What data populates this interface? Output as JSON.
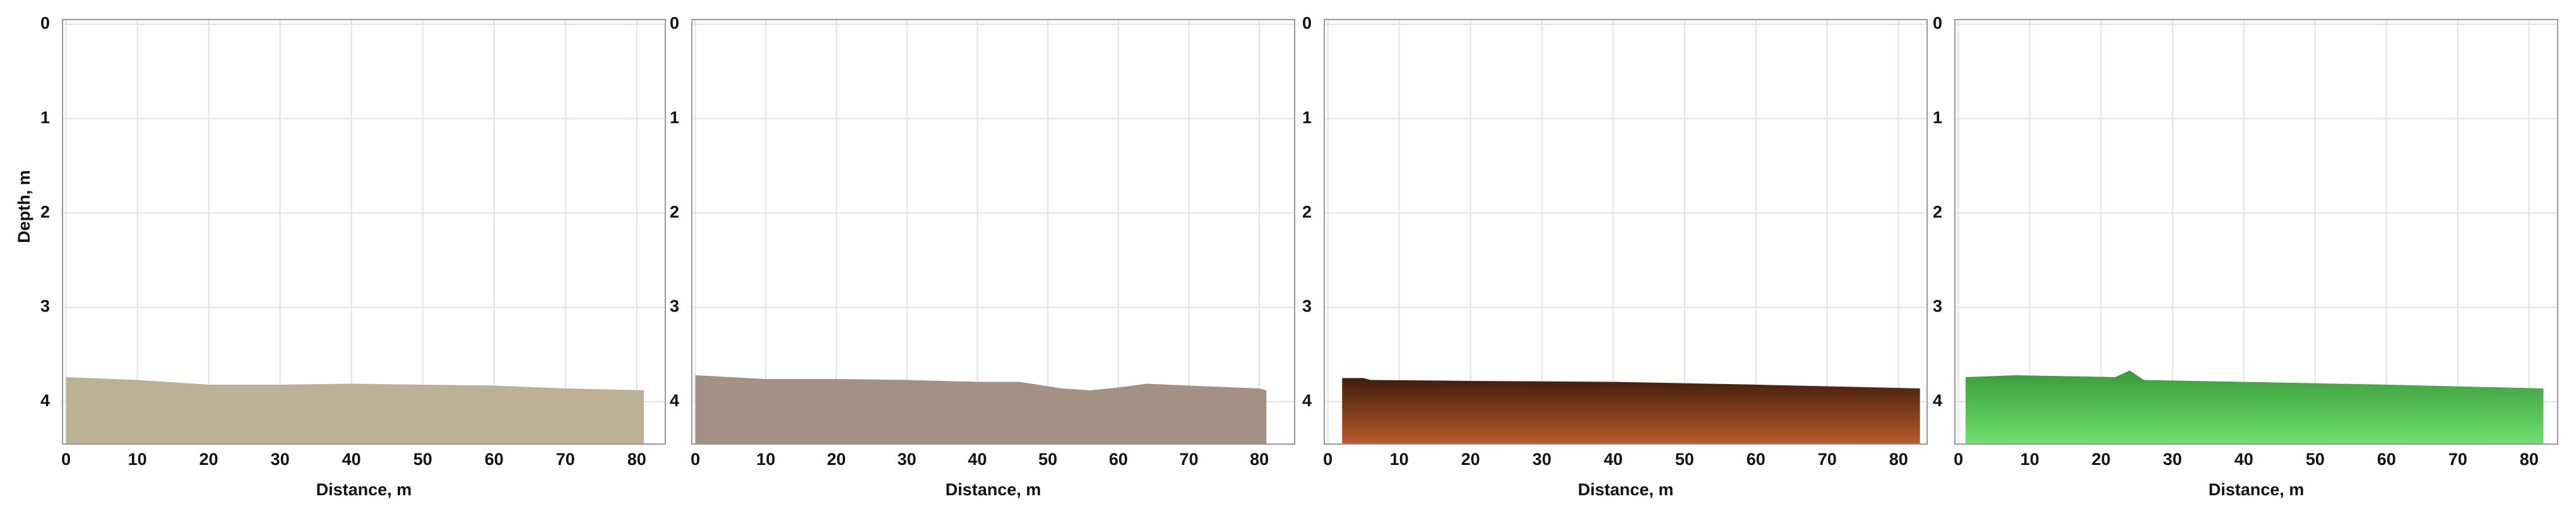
{
  "chart_data": [
    {
      "type": "area",
      "ylabel": "Depth, m",
      "xlabel": "Distance, m",
      "x": [
        0,
        10,
        20,
        30,
        40,
        50,
        60,
        70,
        81
      ],
      "series": [
        {
          "color": [
            "#bcb095",
            "#bcb095"
          ],
          "values": [
            3.74,
            3.77,
            3.82,
            3.82,
            3.81,
            3.82,
            3.83,
            3.86,
            3.88
          ]
        }
      ],
      "xlim": [
        -0.5,
        84
      ],
      "ylim": [
        -0.05,
        4.45
      ],
      "xticks": [
        0,
        10,
        20,
        30,
        40,
        50,
        60,
        70,
        80
      ],
      "yticks": [
        0,
        1,
        2,
        3,
        4
      ],
      "invert_y": true,
      "grid": true
    },
    {
      "type": "area",
      "xlabel": "Distance, m",
      "x": [
        0,
        10,
        20,
        30,
        40,
        46,
        52,
        56,
        60,
        64,
        70,
        80,
        81
      ],
      "series": [
        {
          "color": [
            "#a39185",
            "#a39185"
          ],
          "values": [
            3.72,
            3.76,
            3.76,
            3.77,
            3.79,
            3.79,
            3.86,
            3.88,
            3.85,
            3.81,
            3.83,
            3.86,
            3.88
          ]
        }
      ],
      "xlim": [
        -0.5,
        85
      ],
      "ylim": [
        -0.05,
        4.45
      ],
      "xticks": [
        0,
        10,
        20,
        30,
        40,
        50,
        60,
        70,
        80
      ],
      "yticks": [
        0,
        1,
        2,
        3,
        4
      ],
      "invert_y": true,
      "grid": true
    },
    {
      "type": "area",
      "xlabel": "Distance, m",
      "x": [
        2,
        5,
        6,
        20,
        40,
        60,
        83
      ],
      "series": [
        {
          "color": [
            "#3f1d0b",
            "#ba5b2c"
          ],
          "values": [
            3.75,
            3.75,
            3.77,
            3.78,
            3.79,
            3.82,
            3.86
          ]
        }
      ],
      "xlim": [
        -0.5,
        84
      ],
      "ylim": [
        -0.05,
        4.45
      ],
      "xticks": [
        0,
        10,
        20,
        30,
        40,
        50,
        60,
        70,
        80
      ],
      "yticks": [
        0,
        1,
        2,
        3,
        4
      ],
      "invert_y": true,
      "grid": true
    },
    {
      "type": "area",
      "xlabel": "Distance, m",
      "x": [
        1,
        8,
        22,
        24,
        26,
        40,
        60,
        82
      ],
      "series": [
        {
          "color": [
            "#3a9a3a",
            "#6fe06f"
          ],
          "values": [
            3.74,
            3.72,
            3.74,
            3.67,
            3.77,
            3.79,
            3.82,
            3.86
          ]
        }
      ],
      "xlim": [
        -0.5,
        84
      ],
      "ylim": [
        -0.05,
        4.45
      ],
      "xticks": [
        0,
        10,
        20,
        30,
        40,
        50,
        60,
        70,
        80
      ],
      "yticks": [
        0,
        1,
        2,
        3,
        4
      ],
      "invert_y": true,
      "grid": true
    }
  ]
}
